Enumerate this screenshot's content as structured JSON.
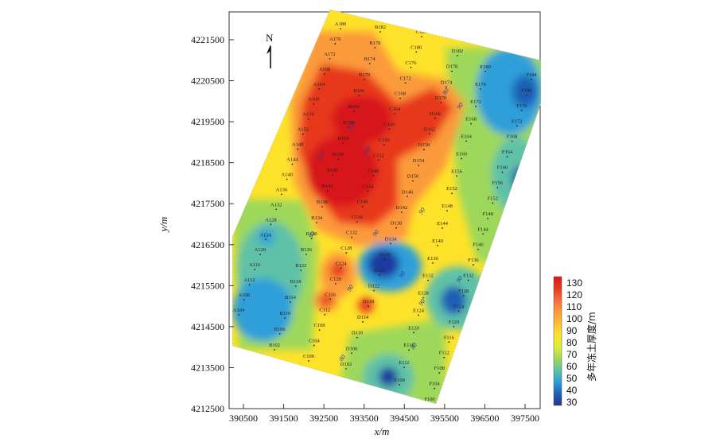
{
  "map": {
    "north_label": "N",
    "x_axis_label": "x/m",
    "y_axis_label": "y/m",
    "x_ticks": [
      "390500",
      "391500",
      "392500",
      "393500",
      "394500",
      "395500",
      "396500",
      "397500"
    ],
    "y_ticks": [
      "4221500",
      "4220500",
      "4219500",
      "4218500",
      "4217500",
      "4216500",
      "4215500",
      "4214500",
      "4213500",
      "4212500"
    ],
    "colorbar": {
      "title": "多年冻土厚度/m",
      "labels": [
        "130",
        "120",
        "110",
        "100",
        "90",
        "80",
        "70",
        "60",
        "50",
        "40",
        "30"
      ],
      "colors": [
        "#d7191c",
        "#e8381b",
        "#f46d43",
        "#fb9a3a",
        "#fdbe34",
        "#fee229",
        "#d9ef3b",
        "#9ed85a",
        "#5ec1a8",
        "#2d9fd9",
        "#1f5fb5",
        "#253494"
      ]
    },
    "contour_labels": [
      "90",
      "90",
      "90",
      "90",
      "90",
      "90",
      "90",
      "90",
      "80",
      "80",
      "80",
      "110",
      "110",
      "120"
    ],
    "boreholes": [
      "A180",
      "A176",
      "A172",
      "A168",
      "A164",
      "A160",
      "A156",
      "A152",
      "A148",
      "A144",
      "A140",
      "A136",
      "A132",
      "A128",
      "A124",
      "A120",
      "A116",
      "A112",
      "A108",
      "A104",
      "B182",
      "B178",
      "B174",
      "B170",
      "B166",
      "B162",
      "B158",
      "B154",
      "B150",
      "B146",
      "B142",
      "B138",
      "B134",
      "B130",
      "B126",
      "B122",
      "B118",
      "B114",
      "B110",
      "B106",
      "B102",
      "C184",
      "C180",
      "C176",
      "C172",
      "C168",
      "C164",
      "C160",
      "C156",
      "C152",
      "C148",
      "C144",
      "C140",
      "C136",
      "C132",
      "C128",
      "C124",
      "C120",
      "C116",
      "C112",
      "C108",
      "C104",
      "C100",
      "D182",
      "D178",
      "D174",
      "D170",
      "D166",
      "D162",
      "D158",
      "D154",
      "D150",
      "D146",
      "D142",
      "D138",
      "D134",
      "D130",
      "D126",
      "D122",
      "D118",
      "D114",
      "D110",
      "D106",
      "D102",
      "E180",
      "E176",
      "E172",
      "E168",
      "E164",
      "E160",
      "E156",
      "E152",
      "E148",
      "E144",
      "E140",
      "E136",
      "E132",
      "E128",
      "E124",
      "E120",
      "E116",
      "E112",
      "E108",
      "F184",
      "F180",
      "F176",
      "F172",
      "F168",
      "F164",
      "F160",
      "F156",
      "F152",
      "F148",
      "F144",
      "F140",
      "F136",
      "F132",
      "F128",
      "F124",
      "F120",
      "F116",
      "F112",
      "F108",
      "F104",
      "F100"
    ]
  }
}
